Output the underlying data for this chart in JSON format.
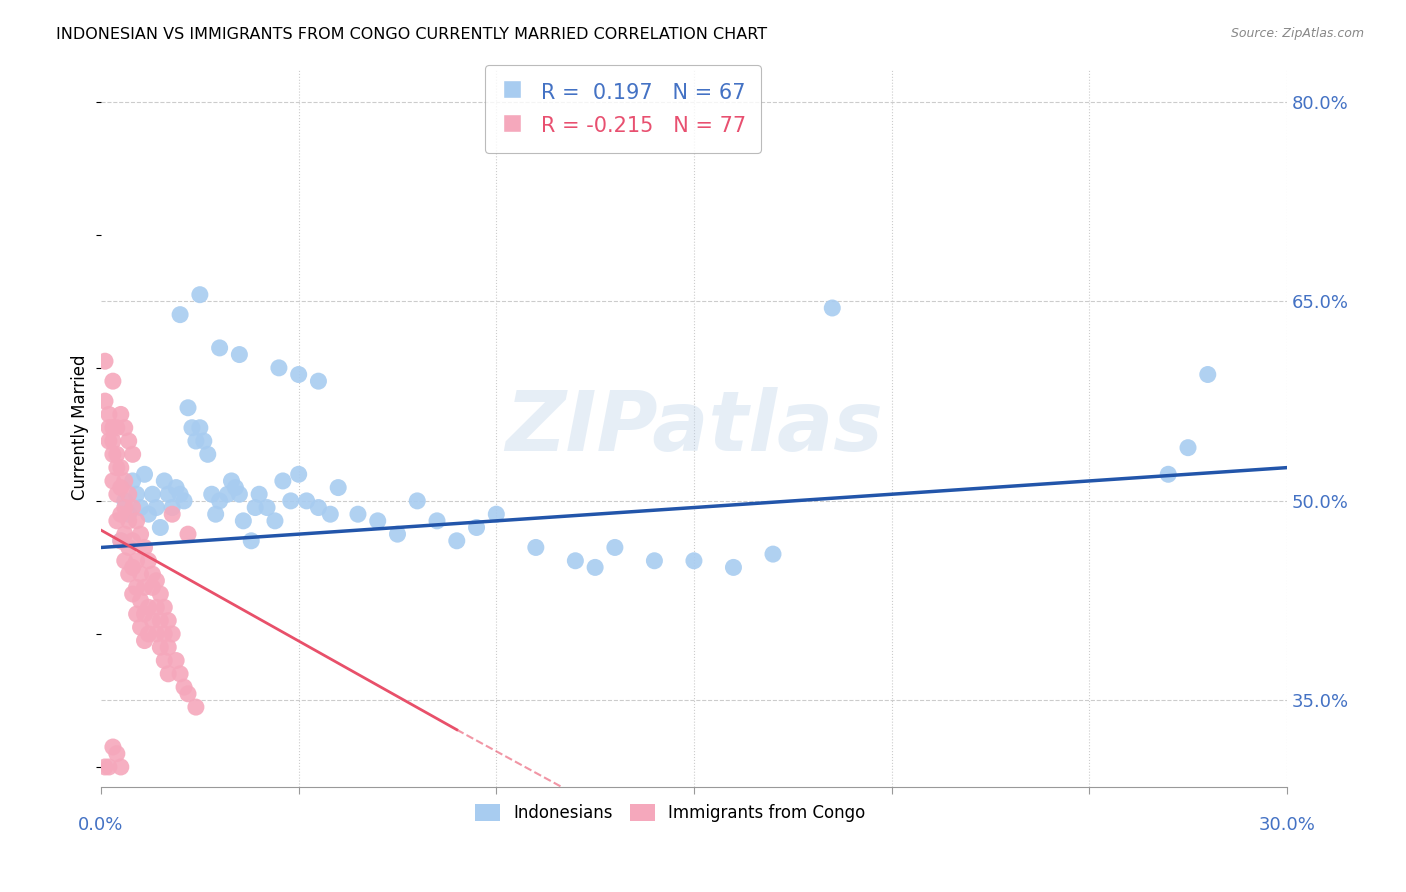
{
  "title": "INDONESIAN VS IMMIGRANTS FROM CONGO CURRENTLY MARRIED CORRELATION CHART",
  "source": "Source: ZipAtlas.com",
  "ylabel": "Currently Married",
  "xlim": [
    0.0,
    0.3
  ],
  "ylim": [
    0.285,
    0.825
  ],
  "ytick_vals": [
    0.35,
    0.5,
    0.65,
    0.8
  ],
  "ytick_labels": [
    "35.0%",
    "50.0%",
    "65.0%",
    "80.0%"
  ],
  "xtick_vals": [
    0.0,
    0.05,
    0.1,
    0.15,
    0.2,
    0.25,
    0.3
  ],
  "legend1_r": " 0.197",
  "legend1_n": "67",
  "legend2_r": "-0.215",
  "legend2_n": "77",
  "blue_color": "#A8CCF0",
  "pink_color": "#F5A8BC",
  "blue_line_color": "#2255AA",
  "pink_line_color": "#E8506A",
  "watermark": "ZIPatlas",
  "blue_line": [
    [
      0.0,
      0.465
    ],
    [
      0.3,
      0.525
    ]
  ],
  "pink_line_solid": [
    [
      0.0,
      0.478
    ],
    [
      0.09,
      0.328
    ]
  ],
  "pink_line_dashed": [
    [
      0.09,
      0.328
    ],
    [
      0.28,
      0.02
    ]
  ],
  "indonesian_scatter": [
    [
      0.005,
      0.47
    ],
    [
      0.006,
      0.5
    ],
    [
      0.007,
      0.49
    ],
    [
      0.008,
      0.515
    ],
    [
      0.009,
      0.505
    ],
    [
      0.01,
      0.495
    ],
    [
      0.011,
      0.52
    ],
    [
      0.012,
      0.49
    ],
    [
      0.013,
      0.505
    ],
    [
      0.014,
      0.495
    ],
    [
      0.015,
      0.48
    ],
    [
      0.016,
      0.515
    ],
    [
      0.017,
      0.505
    ],
    [
      0.018,
      0.495
    ],
    [
      0.019,
      0.51
    ],
    [
      0.02,
      0.505
    ],
    [
      0.021,
      0.5
    ],
    [
      0.022,
      0.57
    ],
    [
      0.023,
      0.555
    ],
    [
      0.024,
      0.545
    ],
    [
      0.025,
      0.555
    ],
    [
      0.026,
      0.545
    ],
    [
      0.027,
      0.535
    ],
    [
      0.028,
      0.505
    ],
    [
      0.029,
      0.49
    ],
    [
      0.03,
      0.5
    ],
    [
      0.032,
      0.505
    ],
    [
      0.033,
      0.515
    ],
    [
      0.034,
      0.51
    ],
    [
      0.035,
      0.505
    ],
    [
      0.036,
      0.485
    ],
    [
      0.038,
      0.47
    ],
    [
      0.039,
      0.495
    ],
    [
      0.04,
      0.505
    ],
    [
      0.042,
      0.495
    ],
    [
      0.044,
      0.485
    ],
    [
      0.046,
      0.515
    ],
    [
      0.048,
      0.5
    ],
    [
      0.05,
      0.52
    ],
    [
      0.052,
      0.5
    ],
    [
      0.055,
      0.495
    ],
    [
      0.058,
      0.49
    ],
    [
      0.06,
      0.51
    ],
    [
      0.065,
      0.49
    ],
    [
      0.07,
      0.485
    ],
    [
      0.075,
      0.475
    ],
    [
      0.08,
      0.5
    ],
    [
      0.085,
      0.485
    ],
    [
      0.09,
      0.47
    ],
    [
      0.095,
      0.48
    ],
    [
      0.1,
      0.49
    ],
    [
      0.11,
      0.465
    ],
    [
      0.12,
      0.455
    ],
    [
      0.125,
      0.45
    ],
    [
      0.13,
      0.465
    ],
    [
      0.14,
      0.455
    ],
    [
      0.15,
      0.455
    ],
    [
      0.16,
      0.45
    ],
    [
      0.17,
      0.46
    ],
    [
      0.02,
      0.64
    ],
    [
      0.025,
      0.655
    ],
    [
      0.03,
      0.615
    ],
    [
      0.035,
      0.61
    ],
    [
      0.045,
      0.6
    ],
    [
      0.05,
      0.595
    ],
    [
      0.055,
      0.59
    ],
    [
      0.185,
      0.645
    ],
    [
      0.27,
      0.52
    ],
    [
      0.28,
      0.595
    ],
    [
      0.275,
      0.54
    ]
  ],
  "congo_scatter": [
    [
      0.001,
      0.605
    ],
    [
      0.002,
      0.565
    ],
    [
      0.002,
      0.545
    ],
    [
      0.003,
      0.555
    ],
    [
      0.003,
      0.535
    ],
    [
      0.003,
      0.515
    ],
    [
      0.004,
      0.525
    ],
    [
      0.004,
      0.505
    ],
    [
      0.004,
      0.485
    ],
    [
      0.005,
      0.51
    ],
    [
      0.005,
      0.49
    ],
    [
      0.005,
      0.47
    ],
    [
      0.006,
      0.495
    ],
    [
      0.006,
      0.475
    ],
    [
      0.006,
      0.455
    ],
    [
      0.007,
      0.485
    ],
    [
      0.007,
      0.465
    ],
    [
      0.007,
      0.445
    ],
    [
      0.008,
      0.47
    ],
    [
      0.008,
      0.45
    ],
    [
      0.008,
      0.43
    ],
    [
      0.009,
      0.455
    ],
    [
      0.009,
      0.435
    ],
    [
      0.009,
      0.415
    ],
    [
      0.01,
      0.445
    ],
    [
      0.01,
      0.425
    ],
    [
      0.01,
      0.405
    ],
    [
      0.011,
      0.435
    ],
    [
      0.011,
      0.415
    ],
    [
      0.011,
      0.395
    ],
    [
      0.012,
      0.42
    ],
    [
      0.012,
      0.4
    ],
    [
      0.013,
      0.435
    ],
    [
      0.013,
      0.41
    ],
    [
      0.014,
      0.42
    ],
    [
      0.014,
      0.4
    ],
    [
      0.015,
      0.41
    ],
    [
      0.015,
      0.39
    ],
    [
      0.016,
      0.4
    ],
    [
      0.016,
      0.38
    ],
    [
      0.017,
      0.39
    ],
    [
      0.017,
      0.37
    ],
    [
      0.018,
      0.49
    ],
    [
      0.019,
      0.38
    ],
    [
      0.02,
      0.37
    ],
    [
      0.021,
      0.36
    ],
    [
      0.022,
      0.355
    ],
    [
      0.022,
      0.475
    ],
    [
      0.024,
      0.345
    ],
    [
      0.001,
      0.575
    ],
    [
      0.002,
      0.555
    ],
    [
      0.003,
      0.545
    ],
    [
      0.004,
      0.535
    ],
    [
      0.005,
      0.525
    ],
    [
      0.006,
      0.515
    ],
    [
      0.007,
      0.505
    ],
    [
      0.008,
      0.495
    ],
    [
      0.009,
      0.485
    ],
    [
      0.01,
      0.475
    ],
    [
      0.011,
      0.465
    ],
    [
      0.012,
      0.455
    ],
    [
      0.013,
      0.445
    ],
    [
      0.014,
      0.44
    ],
    [
      0.015,
      0.43
    ],
    [
      0.016,
      0.42
    ],
    [
      0.017,
      0.41
    ],
    [
      0.018,
      0.4
    ],
    [
      0.003,
      0.59
    ],
    [
      0.004,
      0.555
    ],
    [
      0.005,
      0.565
    ],
    [
      0.006,
      0.555
    ],
    [
      0.007,
      0.545
    ],
    [
      0.008,
      0.535
    ],
    [
      0.001,
      0.3
    ],
    [
      0.002,
      0.3
    ],
    [
      0.003,
      0.315
    ],
    [
      0.004,
      0.31
    ],
    [
      0.005,
      0.3
    ]
  ]
}
